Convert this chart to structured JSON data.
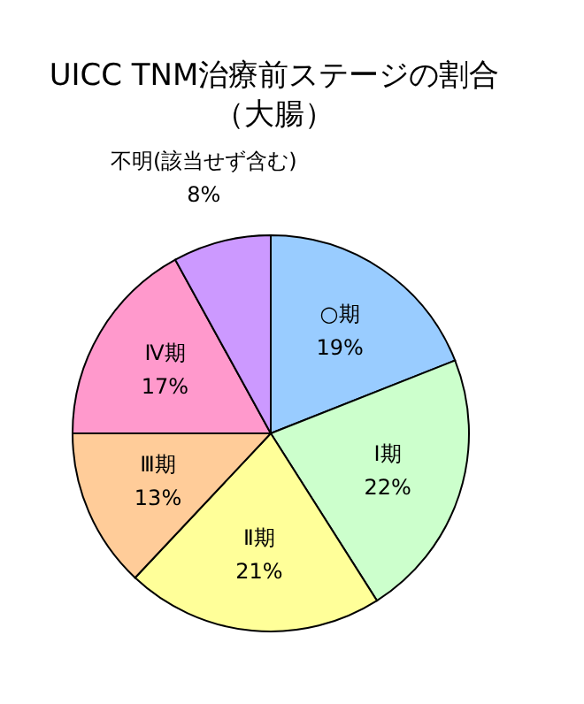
{
  "chart_data": {
    "type": "pie",
    "title": "UICC TNM治療前ステージの割合",
    "subtitle": "（大腸）",
    "categories": [
      "○期",
      "Ⅰ期",
      "Ⅱ期",
      "Ⅲ期",
      "Ⅳ期",
      "不明(該当せず含む)"
    ],
    "values": [
      19,
      22,
      21,
      13,
      17,
      8
    ],
    "value_labels": [
      "19%",
      "22%",
      "21%",
      "13%",
      "17%",
      "8%"
    ],
    "colors": [
      "#99ccff",
      "#ccffcc",
      "#ffff99",
      "#ffcc99",
      "#ff99cc",
      "#cc99ff"
    ]
  }
}
